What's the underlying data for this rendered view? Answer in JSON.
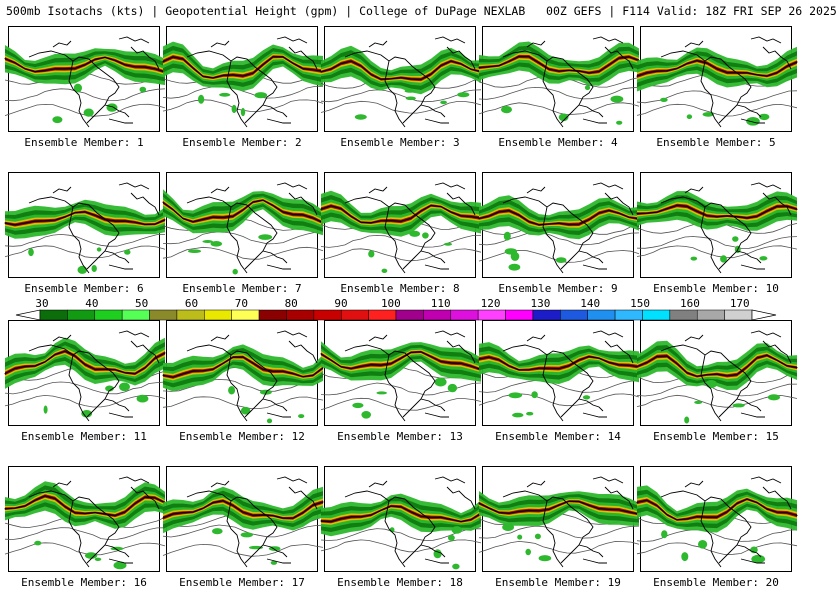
{
  "title": "500mb Isotachs (kts) | Geopotential Height (gpm) | College of DuPage NEXLAB   00Z GEFS | F114 Valid: 18Z FRI SEP 26 2025",
  "members": [
    {
      "label": "Ensemble Member: 1"
    },
    {
      "label": "Ensemble Member: 2"
    },
    {
      "label": "Ensemble Member: 3"
    },
    {
      "label": "Ensemble Member: 4"
    },
    {
      "label": "Ensemble Member: 5"
    },
    {
      "label": "Ensemble Member: 6"
    },
    {
      "label": "Ensemble Member: 7"
    },
    {
      "label": "Ensemble Member: 8"
    },
    {
      "label": "Ensemble Member: 9"
    },
    {
      "label": "Ensemble Member: 10"
    },
    {
      "label": "Ensemble Member: 11"
    },
    {
      "label": "Ensemble Member: 12"
    },
    {
      "label": "Ensemble Member: 13"
    },
    {
      "label": "Ensemble Member: 14"
    },
    {
      "label": "Ensemble Member: 15"
    },
    {
      "label": "Ensemble Member: 16"
    },
    {
      "label": "Ensemble Member: 17"
    },
    {
      "label": "Ensemble Member: 18"
    },
    {
      "label": "Ensemble Member: 19"
    },
    {
      "label": "Ensemble Member: 20"
    }
  ],
  "colorbar": {
    "ticks": [
      "30",
      "40",
      "50",
      "60",
      "70",
      "80",
      "90",
      "100",
      "110",
      "120",
      "130",
      "140",
      "150",
      "160",
      "170"
    ],
    "colors": [
      "#0b6e0b",
      "#129a12",
      "#1fcf1f",
      "#55ff55",
      "#8a8a2a",
      "#bcbc1a",
      "#e8e800",
      "#ffff55",
      "#8b0000",
      "#a80000",
      "#c80000",
      "#e01010",
      "#ff2020",
      "#a0008c",
      "#c000b0",
      "#dd10dd",
      "#ff40ff",
      "#ff00ff",
      "#1c1cc8",
      "#1e5ae0",
      "#2090f0",
      "#30b8ff",
      "#00e0ff",
      "#808080",
      "#a8a8a8",
      "#d0d0d0"
    ]
  },
  "map_colors": {
    "jet_light": "#2db82d",
    "jet_dark": "#0e7a0e",
    "jet_core": "#d8c800",
    "jet_max": "#a00000",
    "height_contour": "#000000",
    "coastline": "#000000"
  }
}
